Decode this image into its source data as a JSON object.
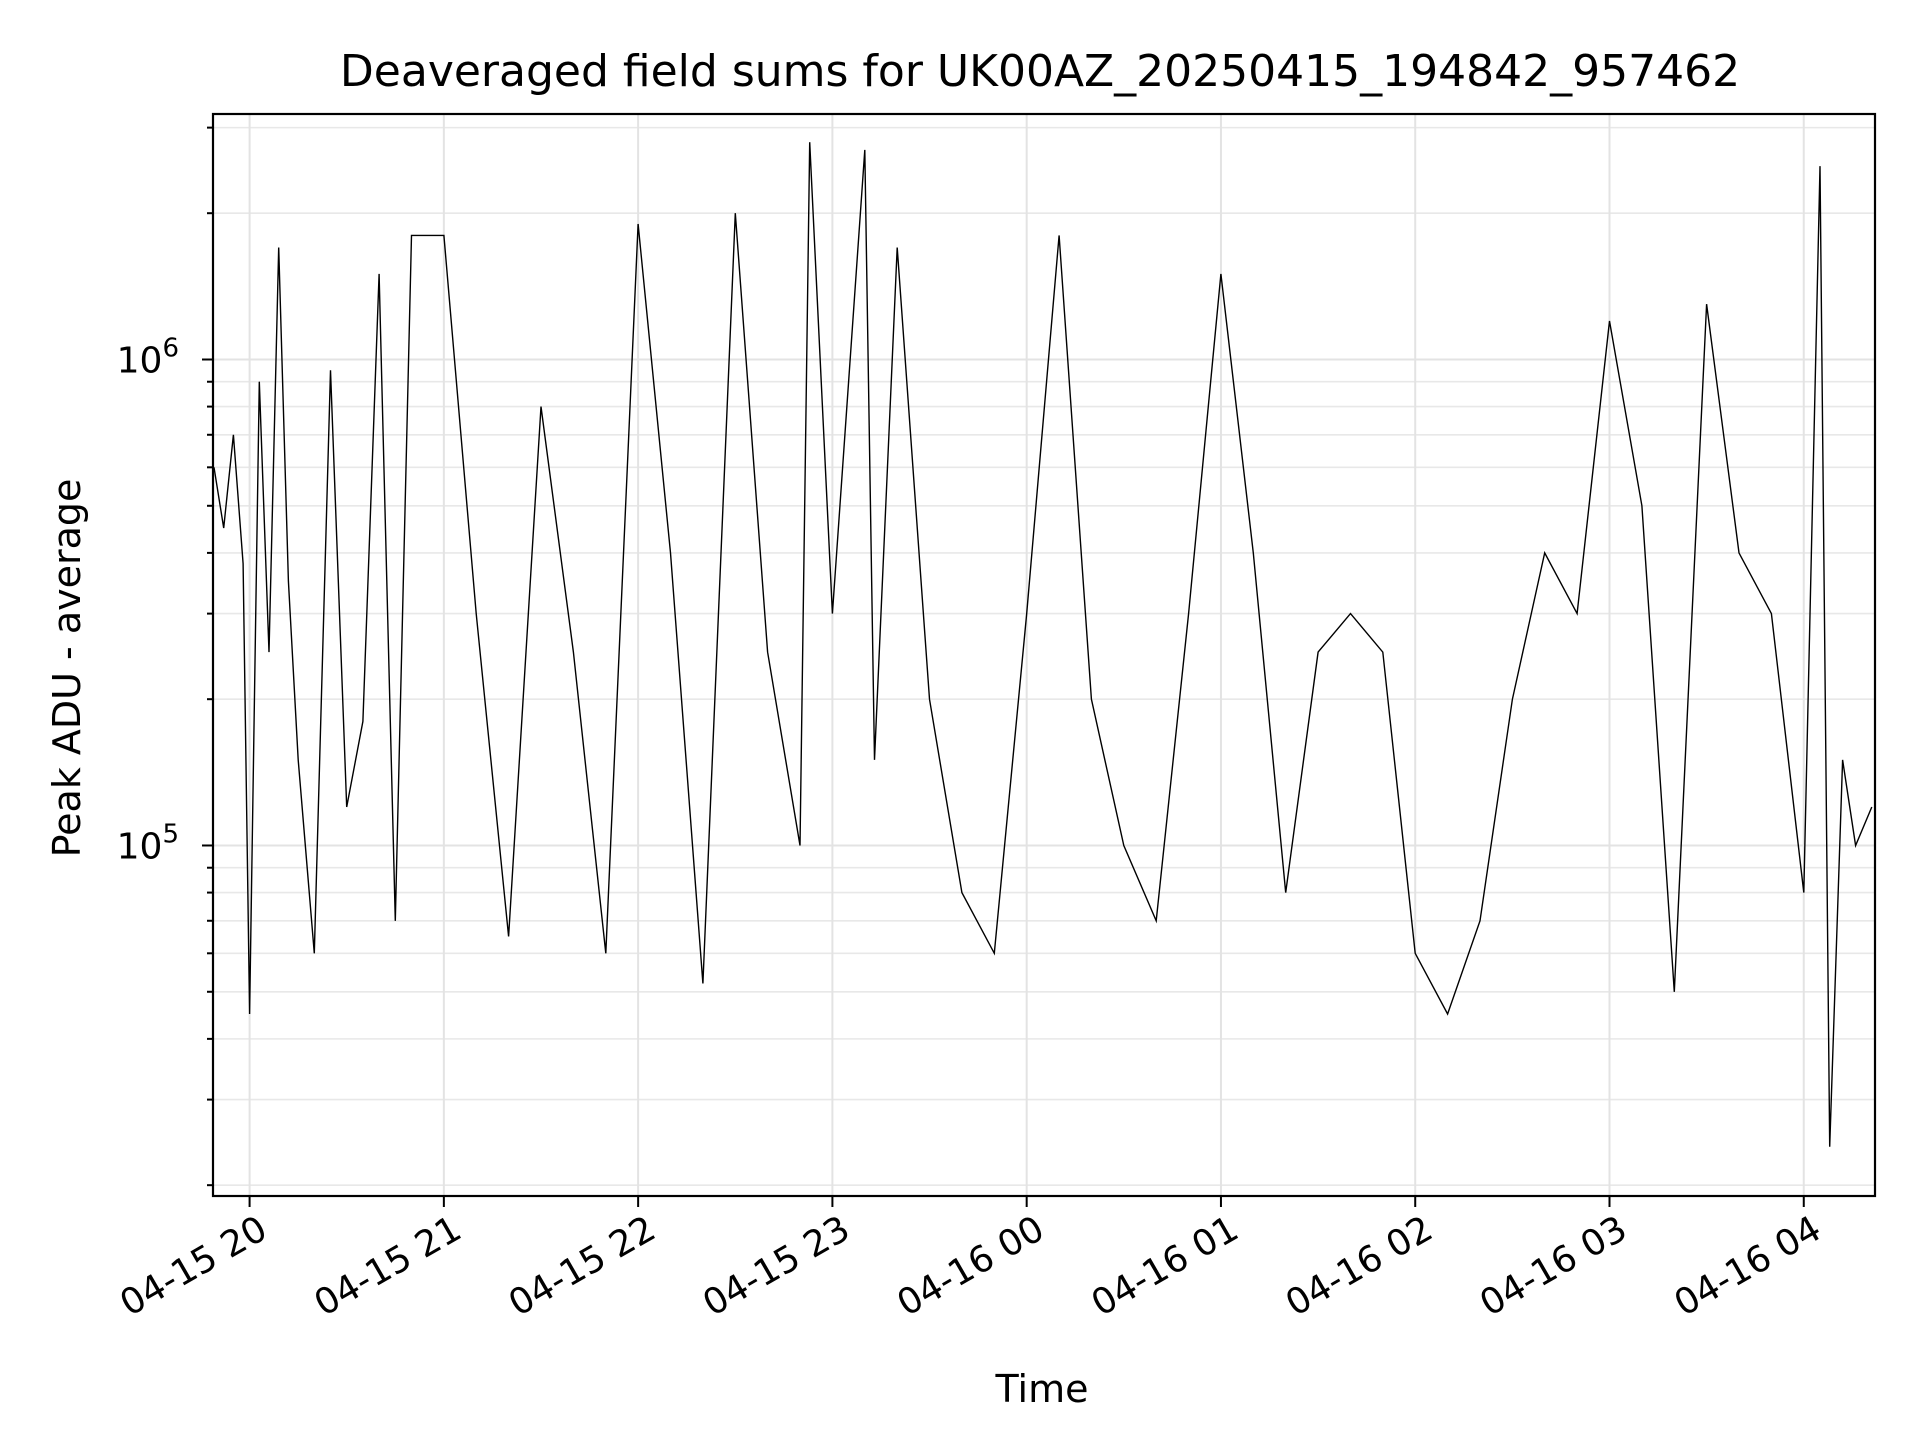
{
  "chart_data": {
    "type": "line",
    "title": "Deaveraged field sums for UK00AZ_20250415_194842_957462",
    "xlabel": "Time",
    "ylabel": "Peak ADU - average",
    "yscale": "log",
    "xlim": [
      "2025-04-15 19:48:42",
      "2025-04-16 04:22:00"
    ],
    "ylim": [
      19000,
      3200000
    ],
    "grid": true,
    "line_color": "#000000",
    "xticks": [
      {
        "t": "2025-04-15 20:00",
        "label": "04-15 20"
      },
      {
        "t": "2025-04-15 21:00",
        "label": "04-15 21"
      },
      {
        "t": "2025-04-15 22:00",
        "label": "04-15 22"
      },
      {
        "t": "2025-04-15 23:00",
        "label": "04-15 23"
      },
      {
        "t": "2025-04-16 00:00",
        "label": "04-16 00"
      },
      {
        "t": "2025-04-16 01:00",
        "label": "04-16 01"
      },
      {
        "t": "2025-04-16 02:00",
        "label": "04-16 02"
      },
      {
        "t": "2025-04-16 03:00",
        "label": "04-16 03"
      },
      {
        "t": "2025-04-16 04:00",
        "label": "04-16 04"
      }
    ],
    "yticks": [
      {
        "value": 100000,
        "base": "10",
        "exp": "5"
      },
      {
        "value": 1000000,
        "base": "10",
        "exp": "6"
      }
    ],
    "x": [
      "2025-04-15 19:49",
      "2025-04-15 19:52",
      "2025-04-15 19:55",
      "2025-04-15 19:58",
      "2025-04-15 20:00",
      "2025-04-15 20:03",
      "2025-04-15 20:06",
      "2025-04-15 20:09",
      "2025-04-15 20:12",
      "2025-04-15 20:15",
      "2025-04-15 20:20",
      "2025-04-15 20:25",
      "2025-04-15 20:30",
      "2025-04-15 20:35",
      "2025-04-15 20:40",
      "2025-04-15 20:45",
      "2025-04-15 20:50",
      "2025-04-15 21:00",
      "2025-04-15 21:10",
      "2025-04-15 21:20",
      "2025-04-15 21:30",
      "2025-04-15 21:40",
      "2025-04-15 21:50",
      "2025-04-15 22:00",
      "2025-04-15 22:10",
      "2025-04-15 22:20",
      "2025-04-15 22:30",
      "2025-04-15 22:40",
      "2025-04-15 22:50",
      "2025-04-15 22:53",
      "2025-04-15 23:00",
      "2025-04-15 23:10",
      "2025-04-15 23:13",
      "2025-04-15 23:20",
      "2025-04-15 23:30",
      "2025-04-15 23:40",
      "2025-04-15 23:50",
      "2025-04-16 00:00",
      "2025-04-16 00:10",
      "2025-04-16 00:20",
      "2025-04-16 00:30",
      "2025-04-16 00:40",
      "2025-04-16 00:50",
      "2025-04-16 01:00",
      "2025-04-16 01:10",
      "2025-04-16 01:20",
      "2025-04-16 01:30",
      "2025-04-16 01:40",
      "2025-04-16 01:50",
      "2025-04-16 02:00",
      "2025-04-16 02:10",
      "2025-04-16 02:20",
      "2025-04-16 02:30",
      "2025-04-16 02:40",
      "2025-04-16 02:50",
      "2025-04-16 03:00",
      "2025-04-16 03:10",
      "2025-04-16 03:20",
      "2025-04-16 03:30",
      "2025-04-16 03:40",
      "2025-04-16 03:50",
      "2025-04-16 04:00",
      "2025-04-16 04:05",
      "2025-04-16 04:08",
      "2025-04-16 04:12",
      "2025-04-16 04:16",
      "2025-04-16 04:21"
    ],
    "y": [
      600000,
      450000,
      700000,
      380000,
      45000,
      900000,
      250000,
      1700000,
      350000,
      150000,
      60000,
      950000,
      120000,
      180000,
      1500000,
      70000,
      1800000,
      1800000,
      300000,
      65000,
      800000,
      250000,
      60000,
      1900000,
      400000,
      52000,
      2000000,
      250000,
      100000,
      2800000,
      300000,
      2700000,
      150000,
      1700000,
      200000,
      80000,
      60000,
      300000,
      1800000,
      200000,
      100000,
      70000,
      300000,
      1500000,
      400000,
      80000,
      250000,
      300000,
      250000,
      60000,
      45000,
      70000,
      200000,
      400000,
      300000,
      1200000,
      500000,
      50000,
      1300000,
      400000,
      300000,
      80000,
      2500000,
      24000,
      150000,
      100000,
      120000
    ]
  }
}
